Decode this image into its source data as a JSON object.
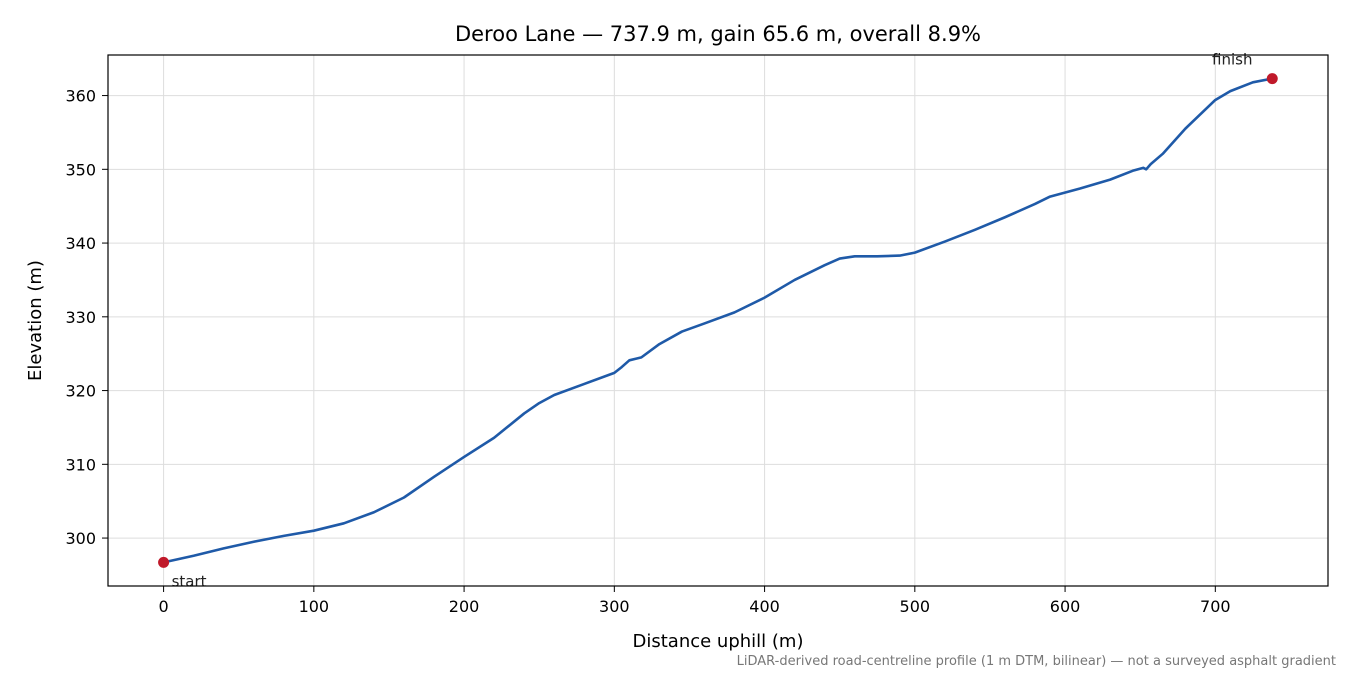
{
  "chart_data": {
    "type": "line",
    "title": "Deroo Lane — 737.9 m, gain 65.6 m, overall 8.9%",
    "xlabel": "Distance uphill (m)",
    "ylabel": "Elevation (m)",
    "footnote": "LiDAR-derived road-centreline profile (1 m DTM, bilinear) — not a surveyed asphalt gradient",
    "xlim": [
      -37,
      775
    ],
    "ylim": [
      293.5,
      365.5
    ],
    "xticks": [
      0,
      100,
      200,
      300,
      400,
      500,
      600,
      700
    ],
    "yticks": [
      300,
      310,
      320,
      330,
      340,
      350,
      360
    ],
    "grid": true,
    "line_color": "#1f5aa8",
    "marker_color": "#c0192a",
    "series": [
      {
        "x": [
          0,
          20,
          40,
          60,
          80,
          100,
          120,
          140,
          160,
          180,
          200,
          220,
          240,
          250,
          260,
          280,
          300,
          305,
          310,
          318,
          330,
          345,
          360,
          380,
          400,
          420,
          440,
          450,
          460,
          475,
          490,
          500,
          520,
          540,
          560,
          580,
          590,
          610,
          630,
          645,
          652,
          654,
          657,
          665,
          680,
          700,
          710,
          725,
          737.9
        ],
        "y": [
          296.7,
          297.6,
          298.6,
          299.5,
          300.3,
          301.0,
          302.0,
          303.5,
          305.5,
          308.3,
          311.0,
          313.6,
          316.9,
          318.3,
          319.4,
          320.9,
          322.4,
          323.2,
          324.1,
          324.5,
          326.3,
          328.0,
          329.1,
          330.6,
          332.6,
          335.0,
          337.0,
          337.9,
          338.2,
          338.2,
          338.3,
          338.7,
          340.2,
          341.8,
          343.5,
          345.3,
          346.3,
          347.4,
          348.6,
          349.8,
          350.2,
          350.0,
          350.7,
          352.1,
          355.5,
          359.4,
          360.6,
          361.8,
          362.3
        ]
      }
    ],
    "markers": [
      {
        "label": "start",
        "x": 0,
        "y": 296.7
      },
      {
        "label": "finish",
        "x": 737.9,
        "y": 362.3
      }
    ]
  }
}
